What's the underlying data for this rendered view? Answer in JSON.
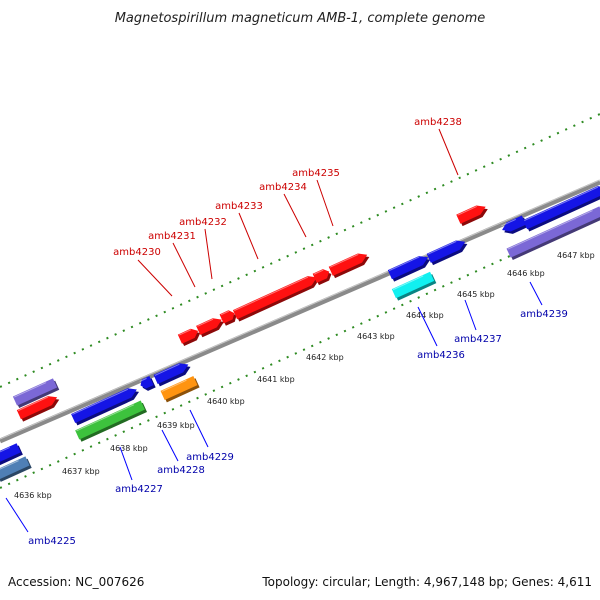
{
  "title": "Magnetospirillum magneticum AMB-1, complete genome",
  "footer": {
    "accession": "Accession: NC_007626",
    "summary": "Topology: circular; Length: 4,967,148 bp; Genes: 4,611"
  },
  "colors": {
    "backbone": "#8a8a8a",
    "tick": "#2e8b22",
    "label_upper": "#cc0000",
    "label_lower": "#0000aa",
    "leader_upper": "#cc0000",
    "leader_lower": "#0000ff"
  },
  "kbp_marks": [
    "4636 kbp",
    "4637 kbp",
    "4638 kbp",
    "4639 kbp",
    "4640 kbp",
    "4641 kbp",
    "4642 kbp",
    "4643 kbp",
    "4644 kbp",
    "4645 kbp",
    "4646 kbp",
    "4647 kbp"
  ],
  "upper_labels": [
    "amb4230",
    "amb4231",
    "amb4232",
    "amb4233",
    "amb4234",
    "amb4235",
    "amb4238"
  ],
  "lower_labels": [
    "amb4225",
    "amb4227",
    "amb4228",
    "amb4229",
    "amb4236",
    "amb4237",
    "amb4239"
  ],
  "feature_colors": {
    "red": "#ff1111",
    "blue": "#1515e6",
    "purple": "#7b68d6",
    "green": "#3dc23d",
    "orange": "#ff9410",
    "cyan": "#11f0f0",
    "steel": "#4f7fb5"
  }
}
